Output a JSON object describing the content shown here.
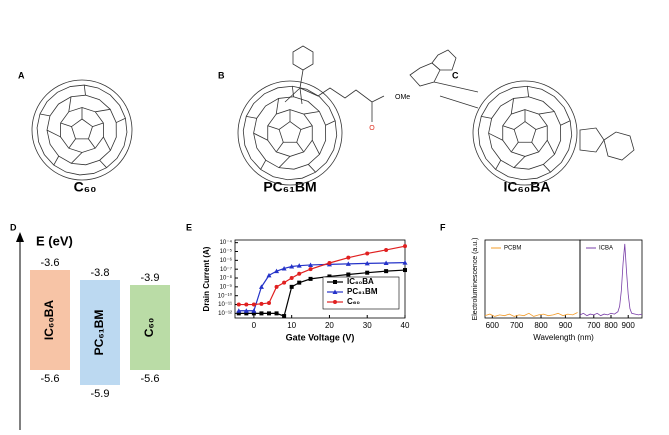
{
  "panels": [
    {
      "letter": "A",
      "name": "C₆₀"
    },
    {
      "letter": "B",
      "name": "PC₆₁BM",
      "annotations": [
        "O",
        "OMe"
      ]
    },
    {
      "letter": "C",
      "name": "IC₆₀BA"
    }
  ],
  "chart_data": [
    {
      "letter": "D",
      "type": "range-bar",
      "ylabel": "E (eV)",
      "categories": [
        "IC₆₀BA",
        "PC₆₁BM",
        "C₆₀"
      ],
      "values": [
        -3.6,
        -3.8,
        -3.9
      ],
      "low": [
        -5.6,
        -5.9,
        -5.6
      ],
      "colors": [
        "#f7c4a6",
        "#bcd9f1",
        "#badca6"
      ],
      "ylim": [
        -6.4,
        -3.0
      ]
    },
    {
      "letter": "E",
      "type": "line",
      "xlabel": "Gate Voltage (V)",
      "ylabel": "Drain Current (A)",
      "yscale": "log",
      "xlim": [
        -5,
        40
      ],
      "xticks": [
        0,
        10,
        20,
        30,
        40
      ],
      "ylim": [
        3e-13,
        0.0002
      ],
      "yticks": [
        {
          "value": 0.0001,
          "label": "10⁻⁴"
        },
        {
          "value": 1e-05,
          "label": "10⁻⁵"
        },
        {
          "value": 1e-06,
          "label": "10⁻⁶"
        },
        {
          "value": 1e-07,
          "label": "10⁻⁷"
        },
        {
          "value": 1e-08,
          "label": "10⁻⁸"
        },
        {
          "value": 1e-09,
          "label": "10⁻⁹"
        },
        {
          "value": 1e-10,
          "label": "10⁻¹⁰"
        },
        {
          "value": 1e-11,
          "label": "10⁻¹¹"
        },
        {
          "value": 1e-12,
          "label": "10⁻¹²"
        }
      ],
      "x": [
        -4,
        -2,
        0,
        2,
        4,
        6,
        8,
        10,
        12,
        15,
        20,
        25,
        30,
        35,
        40
      ],
      "legend": "lower right",
      "series": [
        {
          "name": "IC₆₀BA",
          "color": "#000000",
          "marker": "square",
          "values": [
            1e-12,
            1e-12,
            1e-12,
            1e-12,
            1e-12,
            1e-12,
            5e-13,
            1e-09,
            3e-09,
            8e-09,
            1.5e-08,
            2.5e-08,
            4e-08,
            6e-08,
            8e-08
          ]
        },
        {
          "name": "PC₆₁BM",
          "color": "#2533c9",
          "marker": "triangle",
          "values": [
            2e-12,
            2e-12,
            2e-12,
            1e-09,
            2e-08,
            6e-08,
            1.2e-07,
            2e-07,
            2.5e-07,
            3e-07,
            3.5e-07,
            4e-07,
            4.5e-07,
            5e-07,
            5.5e-07
          ]
        },
        {
          "name": "C₆₀",
          "color": "#e02020",
          "marker": "circle",
          "values": [
            1e-11,
            1e-11,
            1e-11,
            1.2e-11,
            1.5e-11,
            1e-09,
            3e-09,
            1e-08,
            3e-08,
            1e-07,
            5e-07,
            2e-06,
            6e-06,
            1.5e-05,
            4e-05
          ]
        }
      ]
    },
    {
      "letter": "F",
      "type": "line",
      "xlabel": "Wavelength (nm)",
      "ylabel": "Electroluminescence (a.u.)",
      "xlim": [
        570,
        960
      ],
      "xticks": [
        600,
        700,
        800,
        900
      ],
      "ylim": [
        0,
        1
      ],
      "x": [
        570,
        590,
        610,
        630,
        650,
        670,
        690,
        710,
        730,
        750,
        770,
        790,
        810,
        830,
        850,
        870,
        890,
        910,
        930,
        950
      ],
      "series": [
        {
          "name": "PCBM",
          "color": "#f39c2a",
          "marker": "none",
          "values": [
            0.03,
            0.05,
            0.02,
            0.04,
            0.03,
            0.05,
            0.02,
            0.04,
            0.03,
            0.06,
            0.02,
            0.04,
            0.05,
            0.03,
            0.04,
            0.06,
            0.03,
            0.05,
            0.04,
            0.07
          ]
        }
      ]
    },
    {
      "type": "line",
      "xlim": [
        620,
        980
      ],
      "xticks": [
        700,
        800,
        900
      ],
      "ylim": [
        0,
        1
      ],
      "x": [
        620,
        640,
        660,
        680,
        700,
        720,
        740,
        760,
        780,
        800,
        820,
        840,
        850,
        860,
        870,
        880,
        890,
        900,
        910,
        920,
        940,
        960,
        980
      ],
      "series": [
        {
          "name": "ICBA",
          "color": "#7a3fa8",
          "marker": "none",
          "values": [
            0.04,
            0.06,
            0.03,
            0.05,
            0.04,
            0.06,
            0.03,
            0.05,
            0.04,
            0.06,
            0.05,
            0.08,
            0.15,
            0.35,
            0.7,
            0.95,
            0.6,
            0.3,
            0.12,
            0.06,
            0.05,
            0.04,
            0.05
          ]
        }
      ]
    }
  ]
}
